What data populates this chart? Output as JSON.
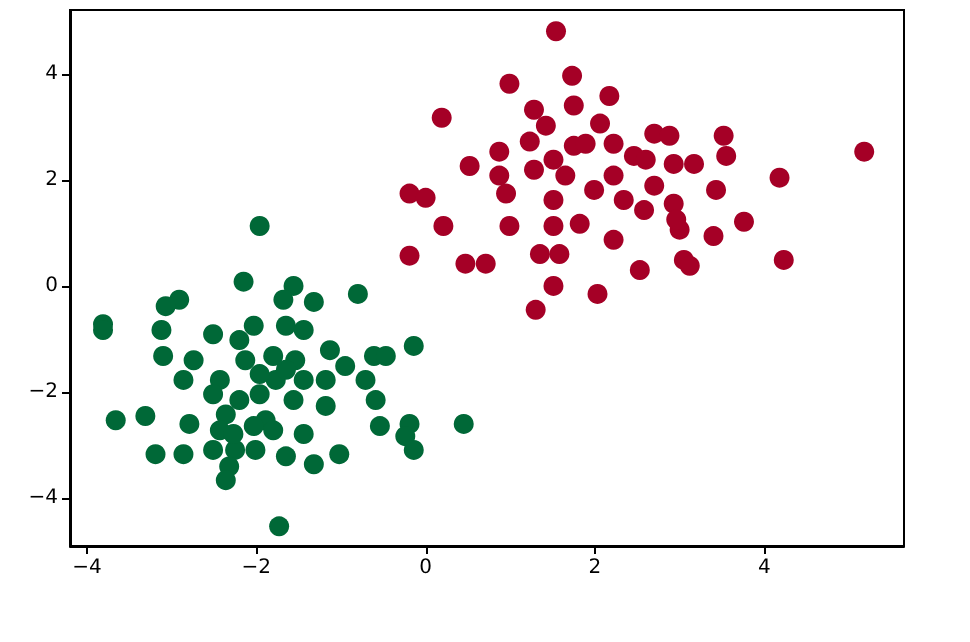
{
  "chart_data": {
    "type": "scatter",
    "xlim": [
      -4.2,
      5.65
    ],
    "ylim": [
      -4.9,
      5.2
    ],
    "xticks": [
      -4,
      -2,
      0,
      2,
      4
    ],
    "yticks": [
      -4,
      -2,
      0,
      2,
      4
    ],
    "marker": "circle",
    "grid": false,
    "series": [
      {
        "color": "#a50026",
        "x": [
          1.54,
          0.99,
          1.73,
          0.19,
          2.17,
          1.28,
          1.75,
          2.7,
          2.88,
          3.52,
          3.55,
          5.18,
          4.18,
          -0.19,
          0.0,
          0.52,
          0.87,
          1.23,
          0.21,
          0.99,
          -0.19,
          0.47,
          0.71,
          1.35,
          1.51,
          1.3,
          2.03,
          2.22,
          2.53,
          3.05,
          3.12,
          3.4,
          3.76,
          4.23,
          3.0,
          2.93,
          2.7,
          3.43,
          3.17,
          2.93,
          2.22,
          1.99,
          1.82,
          1.51,
          1.51,
          2.34,
          2.58,
          1.75,
          1.51,
          1.89,
          1.28,
          0.87,
          0.95,
          2.06,
          2.22,
          2.46,
          2.6,
          1.42,
          1.58,
          2.96,
          1.65
        ],
        "values": [
          4.8,
          3.81,
          3.96,
          3.17,
          3.58,
          3.32,
          3.4,
          2.87,
          2.83,
          2.83,
          2.45,
          2.53,
          2.04,
          1.74,
          1.66,
          2.26,
          2.53,
          2.72,
          1.13,
          1.13,
          0.57,
          0.42,
          0.42,
          0.6,
          0.0,
          -0.45,
          -0.15,
          0.87,
          0.3,
          0.49,
          0.38,
          0.94,
          1.21,
          0.49,
          1.06,
          1.55,
          1.89,
          1.81,
          2.3,
          2.3,
          2.08,
          1.81,
          1.17,
          1.62,
          1.13,
          1.62,
          1.43,
          2.64,
          2.38,
          2.68,
          2.19,
          2.08,
          1.74,
          3.06,
          2.68,
          2.45,
          2.38,
          3.02,
          0.6,
          1.25,
          2.08
        ]
      },
      {
        "color": "#006837",
        "x": [
          -1.96,
          -2.15,
          -2.91,
          -3.07,
          -3.81,
          -3.81,
          -1.56,
          -1.68,
          -1.32,
          -0.8,
          -3.12,
          -2.51,
          -2.03,
          -2.2,
          -1.65,
          -1.44,
          -3.1,
          -2.74,
          -2.86,
          -2.43,
          -2.13,
          -1.8,
          -1.54,
          -1.13,
          -0.95,
          -0.61,
          -0.47,
          -0.14,
          -0.71,
          -1.18,
          -0.59,
          -1.18,
          -1.56,
          -1.96,
          -2.2,
          -2.36,
          -1.89,
          -3.66,
          -3.31,
          -2.79,
          -2.43,
          -2.03,
          -1.8,
          -1.44,
          -0.54,
          -0.19,
          0.45,
          -0.24,
          -0.14,
          -3.19,
          -2.86,
          -2.51,
          -2.25,
          -2.32,
          -2.36,
          -2.01,
          -1.65,
          -1.32,
          -1.02,
          -1.73,
          -1.77,
          -1.65,
          -1.96,
          -1.44,
          -2.51,
          -2.27
        ],
        "values": [
          1.13,
          0.08,
          -0.26,
          -0.38,
          -0.72,
          -0.83,
          0.0,
          -0.26,
          -0.3,
          -0.15,
          -0.83,
          -0.91,
          -0.75,
          -1.02,
          -0.75,
          -0.83,
          -1.32,
          -1.4,
          -1.77,
          -1.77,
          -1.4,
          -1.32,
          -1.4,
          -1.21,
          -1.51,
          -1.32,
          -1.32,
          -1.13,
          -1.77,
          -1.77,
          -2.15,
          -2.26,
          -2.15,
          -2.04,
          -2.15,
          -2.42,
          -2.53,
          -2.53,
          -2.45,
          -2.6,
          -2.72,
          -2.64,
          -2.72,
          -2.79,
          -2.64,
          -2.6,
          -2.6,
          -2.83,
          -3.09,
          -3.17,
          -3.17,
          -3.09,
          -3.09,
          -3.4,
          -3.66,
          -3.09,
          -3.21,
          -3.36,
          -3.17,
          -4.53,
          -1.77,
          -1.58,
          -1.66,
          -1.77,
          -2.04,
          -2.79
        ]
      }
    ]
  }
}
